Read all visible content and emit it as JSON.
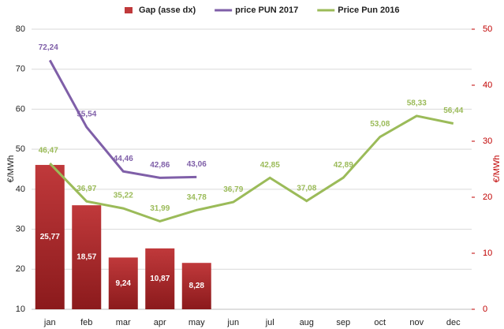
{
  "chart_data": {
    "type": "bar-line",
    "categories": [
      "jan",
      "feb",
      "mar",
      "apr",
      "may",
      "jun",
      "jul",
      "aug",
      "sep",
      "oct",
      "nov",
      "dec"
    ],
    "ylabel": "€/MWh",
    "y2label": "€/MWh",
    "ylim": [
      10,
      80
    ],
    "yticks": [
      10,
      20,
      30,
      40,
      50,
      60,
      70,
      80
    ],
    "y2lim": [
      0,
      50
    ],
    "y2ticks": [
      0,
      10,
      20,
      30,
      40,
      50
    ],
    "y2color": "#c00000",
    "grid": true,
    "legend": "top",
    "series": [
      {
        "name": "Gap (asse dx)",
        "type": "bar",
        "axis": "y2",
        "color": "#c0393b",
        "values": [
          25.77,
          18.57,
          9.24,
          10.87,
          8.28,
          null,
          null,
          null,
          null,
          null,
          null,
          null
        ],
        "value_labels": [
          "25,77",
          "18,57",
          "9,24",
          "10,87",
          "8,28",
          null,
          null,
          null,
          null,
          null,
          null,
          null
        ]
      },
      {
        "name": "price PUN 2017",
        "type": "line",
        "color": "#7f5fa8",
        "values": [
          72.24,
          55.54,
          44.46,
          42.86,
          43.06,
          null,
          null,
          null,
          null,
          null,
          null,
          null
        ],
        "value_labels": [
          "72,24",
          "55,54",
          "44,46",
          "42,86",
          "43,06",
          null,
          null,
          null,
          null,
          null,
          null,
          null
        ]
      },
      {
        "name": "Price Pun 2016",
        "type": "line",
        "color": "#9bbb59",
        "values": [
          46.47,
          36.97,
          35.22,
          31.99,
          34.78,
          36.79,
          42.85,
          37.08,
          42.89,
          53.08,
          58.33,
          56.44
        ],
        "value_labels": [
          "46,47",
          "36,97",
          "35,22",
          "31,99",
          "34,78",
          "36,79",
          "42,85",
          "37,08",
          "42,89",
          "53,08",
          "58,33",
          "56,44"
        ]
      }
    ]
  }
}
